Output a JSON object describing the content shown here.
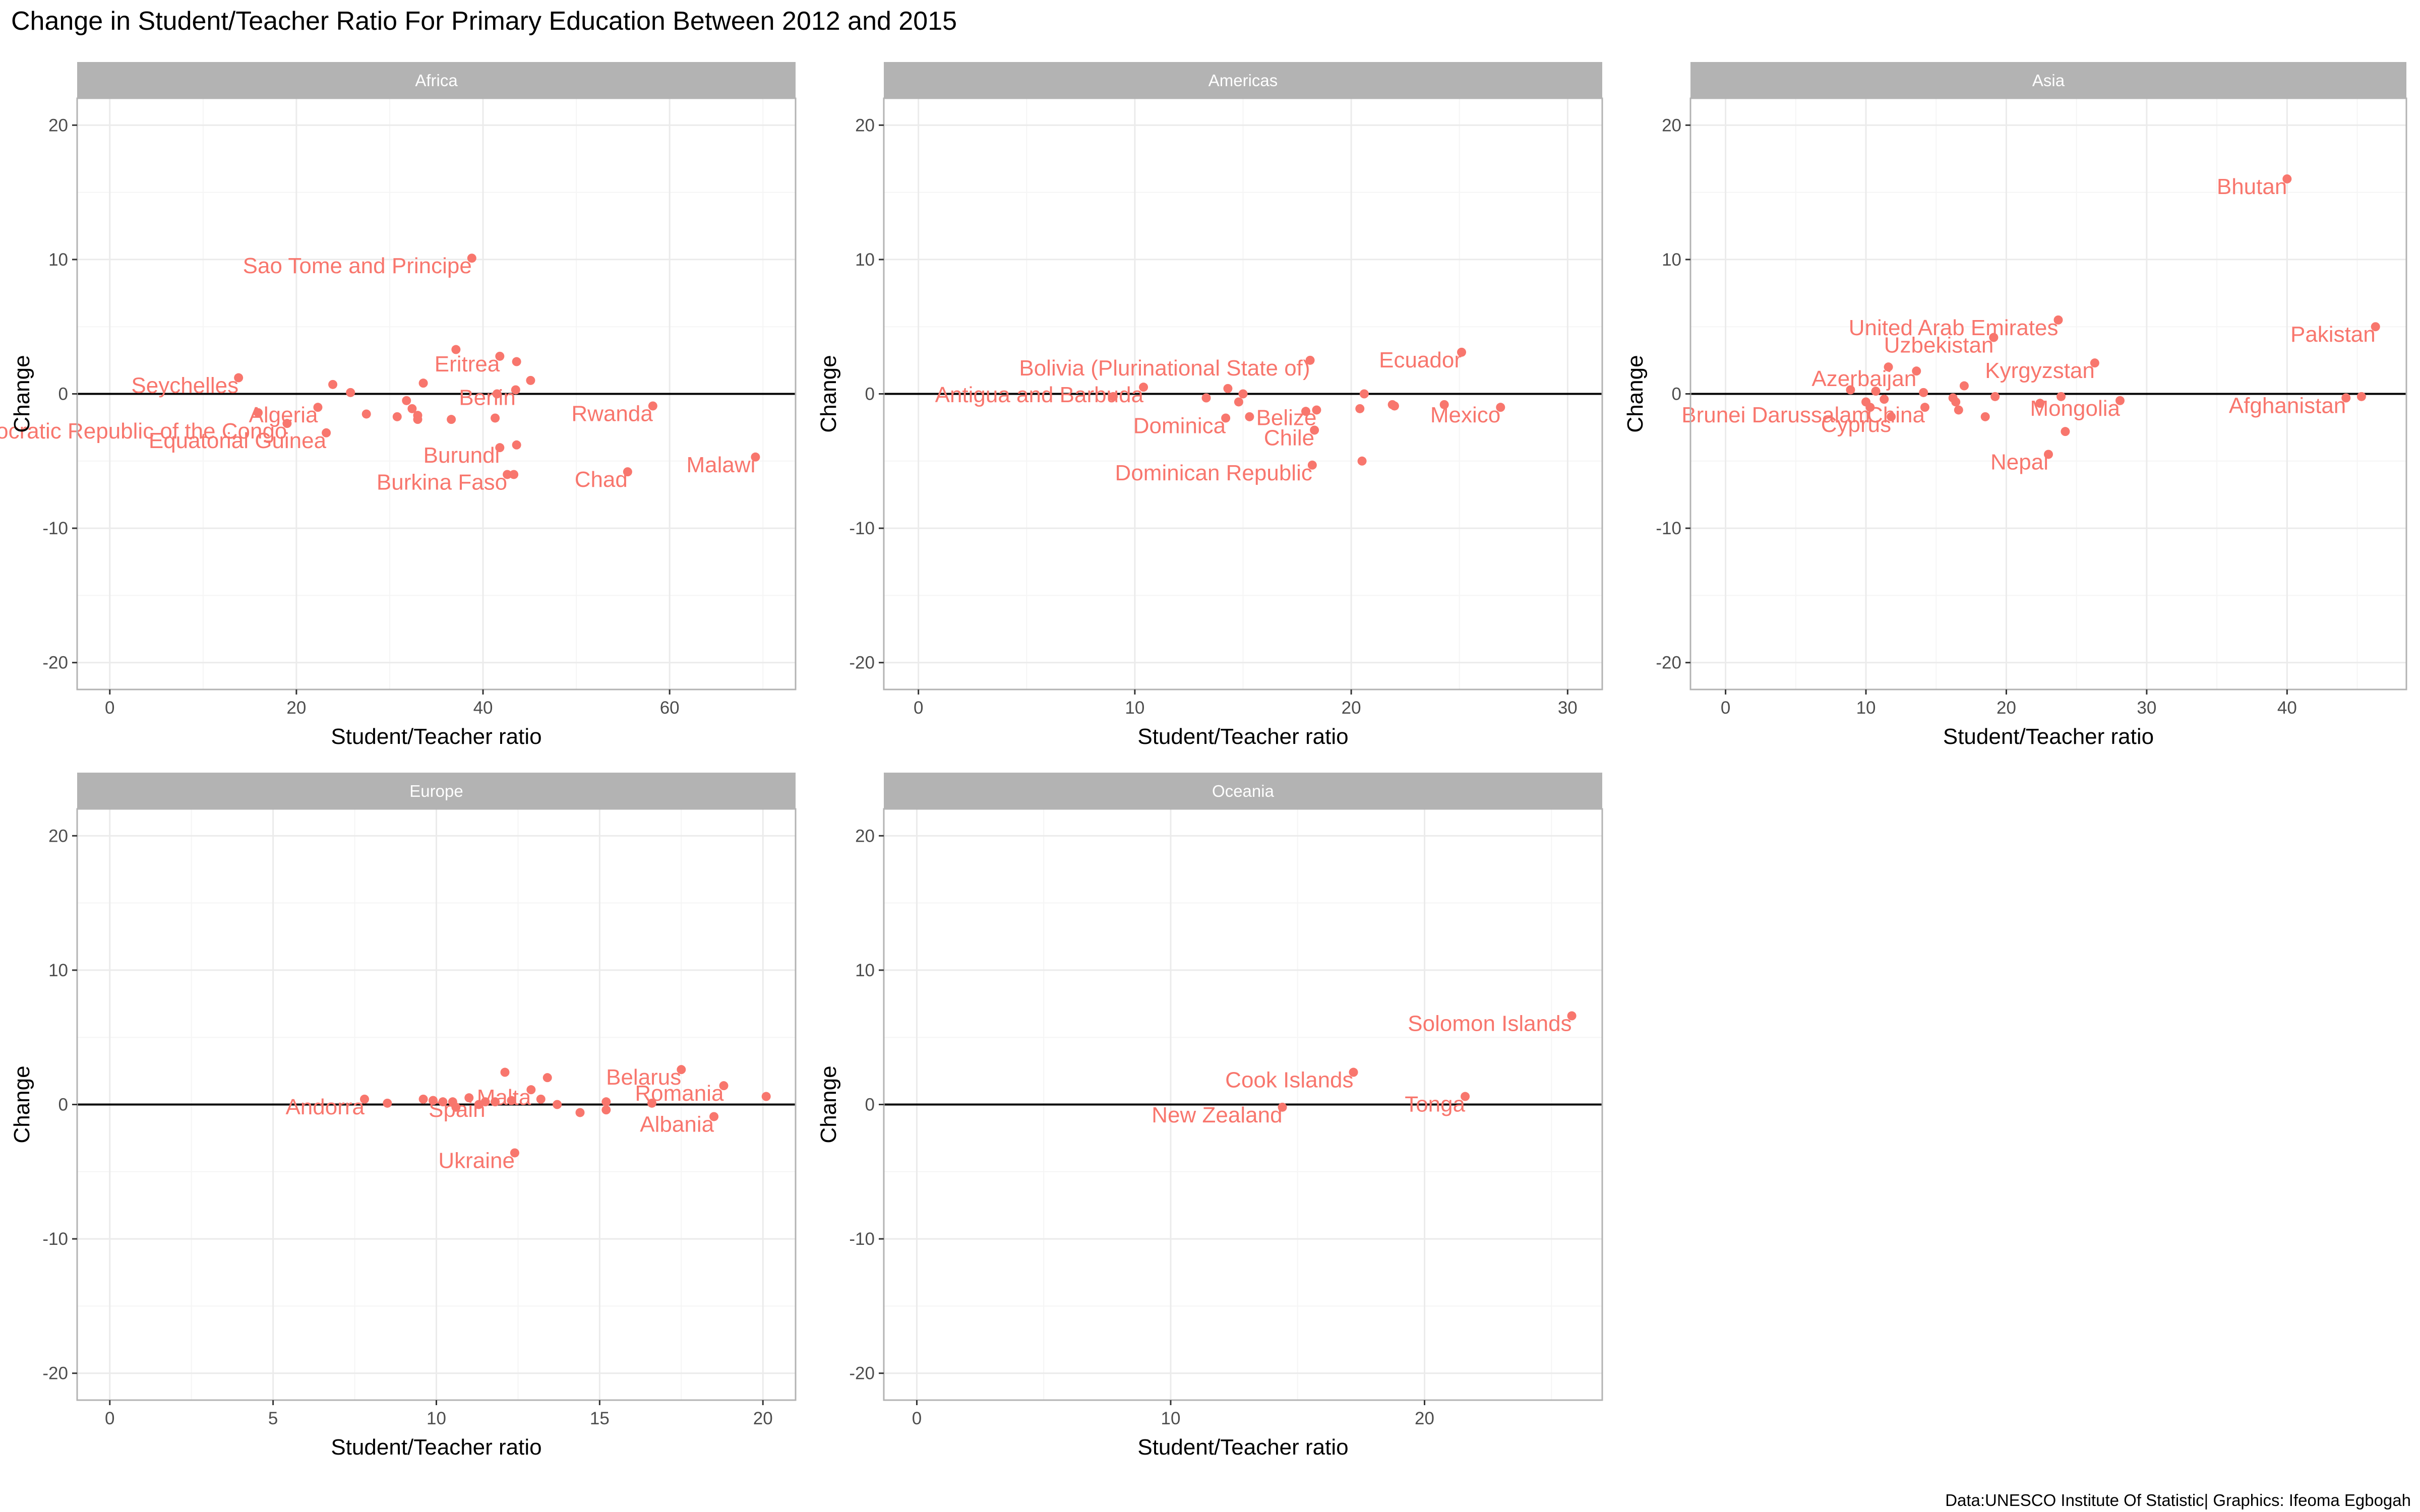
{
  "title": "Change in Student/Teacher Ratio For Primary Education Between 2012 and 2015",
  "caption": "Data:UNESCO Institute Of Statistic| Graphics: Ifeoma Egbogah",
  "colors": {
    "point": "#F8766D",
    "strip": "#b3b3b3",
    "grid_major": "#ebebeb",
    "grid_minor": "#f5f5f5",
    "panel_border": "#b3b3b3",
    "zero_line": "#000000"
  },
  "chart_data": [
    {
      "type": "scatter",
      "panel": "Africa",
      "xlabel": "Student/Teacher ratio",
      "ylabel": "Change",
      "xlim": [
        -3.5,
        73.5
      ],
      "ylim": [
        -22,
        22
      ],
      "xticks": [
        0,
        20,
        40,
        60
      ],
      "yticks": [
        -20,
        -10,
        0,
        10,
        20
      ],
      "grid": true,
      "points": [
        {
          "x": 38.8,
          "y": 10.1,
          "label": "Sao Tome and Principe"
        },
        {
          "x": 13.8,
          "y": 1.2,
          "label": "Seychelles"
        },
        {
          "x": 22.3,
          "y": -1.0,
          "label": "Algeria"
        },
        {
          "x": 19.0,
          "y": -2.2,
          "label": "Democratic Republic of the Congo"
        },
        {
          "x": 23.2,
          "y": -2.9,
          "label": "Equatorial Guinea"
        },
        {
          "x": 41.8,
          "y": 2.8,
          "label": "Eritrea"
        },
        {
          "x": 43.5,
          "y": 0.3,
          "label": "Benin"
        },
        {
          "x": 58.2,
          "y": -0.9,
          "label": "Rwanda"
        },
        {
          "x": 41.8,
          "y": -4.0,
          "label": "Burundi"
        },
        {
          "x": 42.6,
          "y": -6.0,
          "label": "Burkina Faso"
        },
        {
          "x": 55.5,
          "y": -5.8,
          "label": "Chad"
        },
        {
          "x": 69.2,
          "y": -4.7,
          "label": "Malawi"
        },
        {
          "x": 15.9,
          "y": -1.4
        },
        {
          "x": 23.9,
          "y": 0.7
        },
        {
          "x": 25.8,
          "y": 0.1
        },
        {
          "x": 27.5,
          "y": -1.5
        },
        {
          "x": 30.8,
          "y": -1.7
        },
        {
          "x": 31.8,
          "y": -0.5
        },
        {
          "x": 32.4,
          "y": -1.1
        },
        {
          "x": 33.0,
          "y": -1.6
        },
        {
          "x": 33.0,
          "y": -1.9
        },
        {
          "x": 33.6,
          "y": 0.8
        },
        {
          "x": 36.6,
          "y": -1.9
        },
        {
          "x": 37.1,
          "y": 3.3
        },
        {
          "x": 41.3,
          "y": -1.8
        },
        {
          "x": 41.5,
          "y": 0.0
        },
        {
          "x": 43.3,
          "y": -6.0
        },
        {
          "x": 43.6,
          "y": -3.8
        },
        {
          "x": 43.6,
          "y": 2.4
        },
        {
          "x": 45.1,
          "y": 1.0
        }
      ]
    },
    {
      "type": "scatter",
      "panel": "Americas",
      "xlabel": "Student/Teacher ratio",
      "ylabel": "Change",
      "xlim": [
        -1.6,
        31.6
      ],
      "ylim": [
        -22,
        22
      ],
      "xticks": [
        0,
        10,
        20,
        30
      ],
      "yticks": [
        -20,
        -10,
        0,
        10,
        20
      ],
      "grid": true,
      "points": [
        {
          "x": 18.1,
          "y": 2.5,
          "label": "Bolivia (Plurinational State of)"
        },
        {
          "x": 10.4,
          "y": 0.5,
          "label": "Antigua and Barbuda"
        },
        {
          "x": 25.1,
          "y": 3.1,
          "label": "Ecuador"
        },
        {
          "x": 14.2,
          "y": -1.8,
          "label": "Dominica"
        },
        {
          "x": 18.4,
          "y": -1.2,
          "label": "Belize"
        },
        {
          "x": 26.9,
          "y": -1.0,
          "label": "Mexico"
        },
        {
          "x": 18.3,
          "y": -2.7,
          "label": "Chile"
        },
        {
          "x": 18.2,
          "y": -5.3,
          "label": "Dominican Republic"
        },
        {
          "x": 9.0,
          "y": -0.2
        },
        {
          "x": 13.3,
          "y": -0.3
        },
        {
          "x": 14.3,
          "y": 0.4
        },
        {
          "x": 14.8,
          "y": -0.6
        },
        {
          "x": 15.0,
          "y": 0.0
        },
        {
          "x": 15.3,
          "y": -1.7
        },
        {
          "x": 17.9,
          "y": -1.3
        },
        {
          "x": 20.4,
          "y": -1.1
        },
        {
          "x": 20.6,
          "y": 0.0
        },
        {
          "x": 20.5,
          "y": -5.0
        },
        {
          "x": 21.9,
          "y": -0.8
        },
        {
          "x": 22.0,
          "y": -0.9
        },
        {
          "x": 24.3,
          "y": -0.8
        }
      ]
    },
    {
      "type": "scatter",
      "panel": "Asia",
      "xlabel": "Student/Teacher ratio",
      "ylabel": "Change",
      "xlim": [
        -2.5,
        48.5
      ],
      "ylim": [
        -22,
        22
      ],
      "xticks": [
        0,
        10,
        20,
        30,
        40
      ],
      "yticks": [
        -20,
        -10,
        0,
        10,
        20
      ],
      "grid": true,
      "points": [
        {
          "x": 40.0,
          "y": 16.0,
          "label": "Bhutan"
        },
        {
          "x": 46.3,
          "y": 5.0,
          "label": "Pakistan"
        },
        {
          "x": 23.7,
          "y": 5.5,
          "label": "United Arab Emirates"
        },
        {
          "x": 19.1,
          "y": 4.2,
          "label": "Uzbekistan"
        },
        {
          "x": 26.3,
          "y": 2.3,
          "label": "Kyrgyzstan"
        },
        {
          "x": 13.6,
          "y": 1.7,
          "label": "Azerbaijan"
        },
        {
          "x": 10.3,
          "y": -1.0,
          "label": "Brunei Darussalam"
        },
        {
          "x": 14.2,
          "y": -1.0,
          "label": "China"
        },
        {
          "x": 28.1,
          "y": -0.5,
          "label": "Mongolia"
        },
        {
          "x": 11.8,
          "y": -1.7,
          "label": "Cyprus"
        },
        {
          "x": 44.2,
          "y": -0.3,
          "label": "Afghanistan"
        },
        {
          "x": 23.0,
          "y": -4.5,
          "label": "Nepal"
        },
        {
          "x": 8.9,
          "y": 0.3
        },
        {
          "x": 10.0,
          "y": -0.6
        },
        {
          "x": 10.7,
          "y": 0.2
        },
        {
          "x": 11.3,
          "y": -0.4
        },
        {
          "x": 11.6,
          "y": 2.0
        },
        {
          "x": 14.1,
          "y": 0.1
        },
        {
          "x": 16.2,
          "y": -0.3
        },
        {
          "x": 16.4,
          "y": -0.6
        },
        {
          "x": 16.6,
          "y": -1.2
        },
        {
          "x": 17.0,
          "y": 0.6
        },
        {
          "x": 18.5,
          "y": -1.7
        },
        {
          "x": 19.2,
          "y": -0.2
        },
        {
          "x": 22.4,
          "y": -0.7
        },
        {
          "x": 23.9,
          "y": -0.2
        },
        {
          "x": 24.2,
          "y": -2.8
        },
        {
          "x": 45.3,
          "y": -0.2
        }
      ]
    },
    {
      "type": "scatter",
      "panel": "Europe",
      "xlabel": "Student/Teacher ratio",
      "ylabel": "Change",
      "xlim": [
        -1.0,
        21.0
      ],
      "ylim": [
        -22,
        22
      ],
      "xticks": [
        0,
        5,
        10,
        15,
        20
      ],
      "yticks": [
        -20,
        -10,
        0,
        10,
        20
      ],
      "grid": true,
      "points": [
        {
          "x": 7.8,
          "y": 0.4,
          "label": "Andorra"
        },
        {
          "x": 12.9,
          "y": 1.1,
          "label": "Malta"
        },
        {
          "x": 11.5,
          "y": 0.2,
          "label": "Spain"
        },
        {
          "x": 17.5,
          "y": 2.6,
          "label": "Belarus"
        },
        {
          "x": 18.8,
          "y": 1.4,
          "label": "Romania"
        },
        {
          "x": 18.5,
          "y": -0.9,
          "label": "Albania"
        },
        {
          "x": 12.4,
          "y": -3.6,
          "label": "Ukraine"
        },
        {
          "x": 8.5,
          "y": 0.1
        },
        {
          "x": 9.6,
          "y": 0.4
        },
        {
          "x": 9.9,
          "y": 0.3
        },
        {
          "x": 10.2,
          "y": 0.2
        },
        {
          "x": 10.5,
          "y": 0.2
        },
        {
          "x": 10.6,
          "y": -0.2
        },
        {
          "x": 11.0,
          "y": 0.5
        },
        {
          "x": 11.3,
          "y": 0.0
        },
        {
          "x": 11.8,
          "y": 0.2
        },
        {
          "x": 12.1,
          "y": 2.4
        },
        {
          "x": 12.3,
          "y": 0.3
        },
        {
          "x": 13.2,
          "y": 0.4
        },
        {
          "x": 13.4,
          "y": 2.0
        },
        {
          "x": 13.7,
          "y": 0.0
        },
        {
          "x": 14.4,
          "y": -0.6
        },
        {
          "x": 15.2,
          "y": 0.2
        },
        {
          "x": 15.2,
          "y": -0.4
        },
        {
          "x": 16.6,
          "y": 0.1
        },
        {
          "x": 20.1,
          "y": 0.6
        }
      ]
    },
    {
      "type": "scatter",
      "panel": "Oceania",
      "xlabel": "Student/Teacher ratio",
      "ylabel": "Change",
      "xlim": [
        -1.3,
        27.0
      ],
      "ylim": [
        -22,
        22
      ],
      "xticks": [
        0,
        10,
        20
      ],
      "yticks": [
        -20,
        -10,
        0,
        10,
        20
      ],
      "grid": true,
      "points": [
        {
          "x": 25.8,
          "y": 6.6,
          "label": "Solomon Islands"
        },
        {
          "x": 17.2,
          "y": 2.4,
          "label": "Cook Islands"
        },
        {
          "x": 14.4,
          "y": -0.2,
          "label": "New Zealand"
        },
        {
          "x": 21.6,
          "y": 0.6,
          "label": "Tonga"
        }
      ]
    }
  ]
}
